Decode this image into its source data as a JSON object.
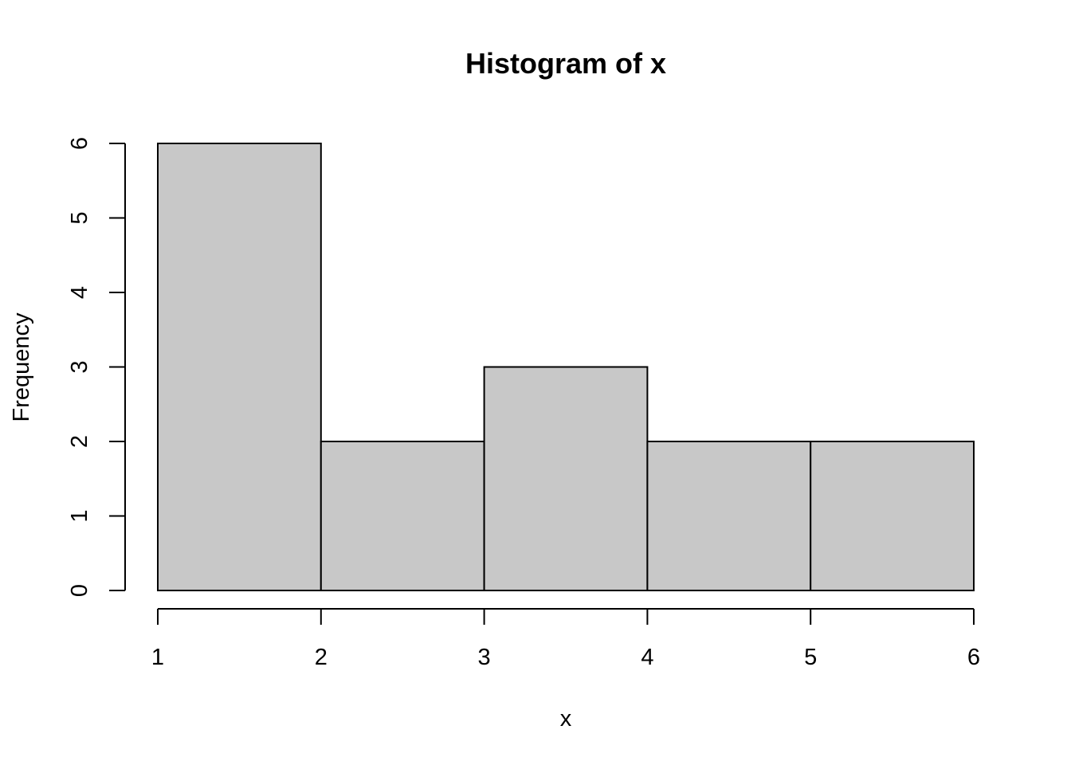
{
  "chart_data": {
    "type": "bar",
    "title": "Histogram of x",
    "xlabel": "x",
    "ylabel": "Frequency",
    "bins": [
      {
        "from": 1,
        "to": 2,
        "count": 6
      },
      {
        "from": 2,
        "to": 3,
        "count": 2
      },
      {
        "from": 3,
        "to": 4,
        "count": 3
      },
      {
        "from": 4,
        "to": 5,
        "count": 2
      },
      {
        "from": 5,
        "to": 6,
        "count": 2
      }
    ],
    "categories": [
      "1-2",
      "2-3",
      "3-4",
      "4-5",
      "5-6"
    ],
    "values": [
      6,
      2,
      3,
      2,
      2
    ],
    "xlim": [
      1,
      6
    ],
    "ylim": [
      0,
      6
    ],
    "x_ticks": [
      "1",
      "2",
      "3",
      "4",
      "5",
      "6"
    ],
    "y_ticks": [
      "0",
      "1",
      "2",
      "3",
      "4",
      "5",
      "6"
    ],
    "grid": false,
    "legend": "none",
    "bar_color": "#c8c8c8",
    "border_color": "#000000"
  }
}
